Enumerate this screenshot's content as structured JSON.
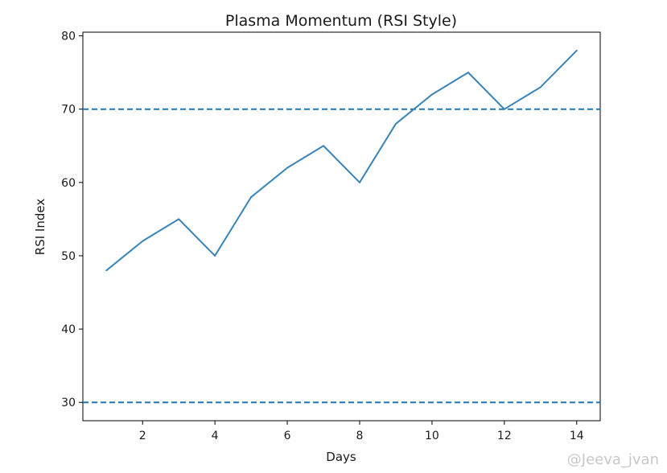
{
  "chart_data": {
    "type": "line",
    "title": "Plasma Momentum (RSI Style)",
    "xlabel": "Days",
    "ylabel": "RSI Index",
    "x": [
      1,
      2,
      3,
      4,
      5,
      6,
      7,
      8,
      9,
      10,
      11,
      12,
      13,
      14
    ],
    "series": [
      {
        "values": [
          48,
          52,
          55,
          50,
          58,
          62,
          65,
          60,
          68,
          72,
          75,
          70,
          73,
          78
        ],
        "color": "#3a84b8",
        "style": "solid"
      }
    ],
    "reference_lines": [
      {
        "y": 70,
        "color": "#1f77b4",
        "style": "dashed"
      },
      {
        "y": 30,
        "color": "#1f77b4",
        "style": "dashed"
      }
    ],
    "xticks": [
      2,
      4,
      6,
      8,
      10,
      12,
      14
    ],
    "yticks": [
      30,
      40,
      50,
      60,
      70,
      80
    ],
    "xlim": [
      0.35,
      14.65
    ],
    "ylim": [
      27.5,
      80.5
    ],
    "grid": false,
    "legend": "none"
  },
  "watermark": "@Jeeva_jvan"
}
